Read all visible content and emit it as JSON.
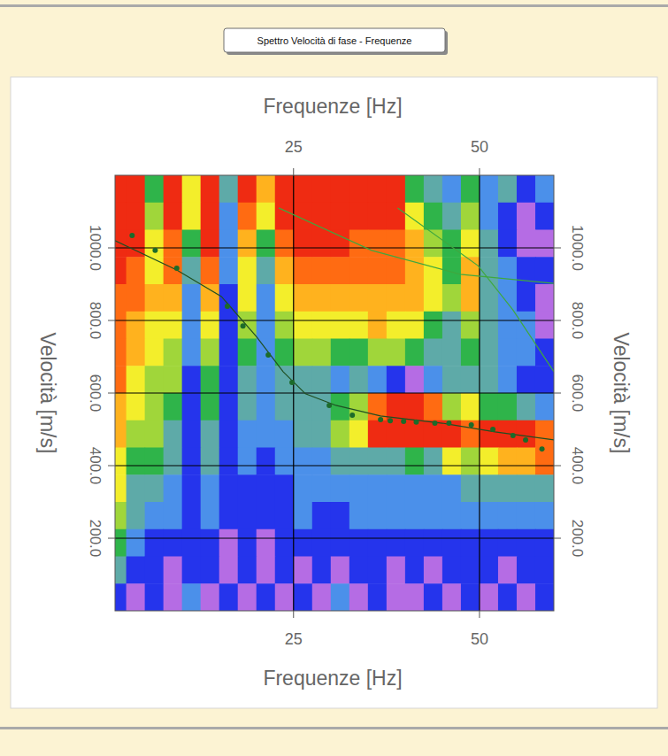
{
  "chart_data": {
    "type": "heatmap",
    "title": "Spettro Velocità di fase - Frequenze",
    "x_label": "Frequenze [Hz]",
    "y_label": "Velocità [m/s]",
    "xlim": [
      1,
      60
    ],
    "ylim": [
      0,
      1200
    ],
    "xticks": [
      25,
      50
    ],
    "yticks": [
      {
        "value": 200,
        "label": "200.0"
      },
      {
        "value": 400,
        "label": "400.0"
      },
      {
        "value": 600,
        "label": "600.0"
      },
      {
        "value": 800,
        "label": "800.0"
      },
      {
        "value": 1000,
        "label": "1000.0"
      }
    ],
    "grid": true,
    "legend": false,
    "color_range": [
      0,
      9
    ],
    "x_bins": [
      0,
      2.5,
      5,
      7.5,
      10,
      12.5,
      15,
      17.5,
      20,
      22.5,
      25,
      27.5,
      30,
      32.5,
      35,
      37.5,
      40,
      42.5,
      45,
      47.5,
      50,
      52.5,
      55,
      57.5,
      60
    ],
    "y_bins": [
      1200,
      1125,
      1050,
      975,
      900,
      825,
      750,
      675,
      600,
      525,
      450,
      375,
      300,
      225,
      150,
      75,
      0
    ],
    "cells": [
      [
        9,
        9,
        4,
        9,
        6,
        9,
        3,
        9,
        7,
        9,
        9,
        9,
        9,
        9,
        9,
        9,
        4,
        3,
        2,
        4,
        2,
        3,
        1,
        2
      ],
      [
        9,
        9,
        5,
        9,
        6,
        9,
        2,
        8,
        6,
        9,
        9,
        9,
        9,
        9,
        9,
        9,
        6,
        4,
        3,
        5,
        2,
        1,
        0,
        1
      ],
      [
        9,
        9,
        6,
        8,
        4,
        9,
        2,
        7,
        4,
        8,
        9,
        9,
        9,
        8,
        8,
        8,
        7,
        5,
        4,
        6,
        3,
        1,
        0,
        0
      ],
      [
        9,
        8,
        6,
        8,
        3,
        8,
        2,
        6,
        3,
        7,
        8,
        8,
        8,
        8,
        8,
        8,
        7,
        6,
        4,
        7,
        3,
        2,
        1,
        1
      ],
      [
        8,
        8,
        7,
        7,
        2,
        7,
        1,
        6,
        2,
        6,
        7,
        7,
        7,
        7,
        7,
        7,
        7,
        6,
        5,
        7,
        3,
        2,
        1,
        0
      ],
      [
        8,
        7,
        6,
        6,
        2,
        6,
        1,
        5,
        2,
        5,
        6,
        6,
        6,
        6,
        7,
        6,
        6,
        4,
        3,
        5,
        3,
        2,
        2,
        0
      ],
      [
        8,
        7,
        6,
        5,
        2,
        5,
        1,
        4,
        2,
        4,
        5,
        5,
        4,
        4,
        5,
        5,
        4,
        3,
        3,
        4,
        3,
        2,
        2,
        1
      ],
      [
        8,
        6,
        5,
        5,
        1,
        4,
        1,
        3,
        2,
        3,
        3,
        3,
        2,
        3,
        2,
        1,
        0,
        2,
        3,
        3,
        3,
        2,
        1,
        1
      ],
      [
        7,
        6,
        5,
        4,
        1,
        4,
        1,
        3,
        2,
        3,
        3,
        3,
        4,
        5,
        8,
        9,
        9,
        8,
        5,
        6,
        4,
        4,
        3,
        2
      ],
      [
        7,
        5,
        5,
        3,
        1,
        3,
        1,
        2,
        2,
        2,
        3,
        3,
        5,
        6,
        9,
        9,
        9,
        9,
        9,
        8,
        9,
        9,
        9,
        8
      ],
      [
        6,
        4,
        4,
        3,
        1,
        3,
        1,
        2,
        1,
        2,
        2,
        2,
        3,
        3,
        3,
        3,
        4,
        3,
        6,
        5,
        6,
        7,
        7,
        8
      ],
      [
        6,
        3,
        3,
        2,
        1,
        2,
        1,
        1,
        1,
        1,
        2,
        2,
        2,
        2,
        2,
        2,
        2,
        2,
        2,
        3,
        3,
        3,
        3,
        3
      ],
      [
        5,
        3,
        2,
        2,
        1,
        2,
        1,
        1,
        1,
        1,
        2,
        1,
        1,
        2,
        2,
        2,
        2,
        2,
        2,
        2,
        2,
        2,
        2,
        2
      ],
      [
        4,
        2,
        1,
        1,
        1,
        1,
        0,
        1,
        0,
        1,
        1,
        1,
        1,
        1,
        1,
        1,
        1,
        1,
        1,
        1,
        1,
        1,
        1,
        1
      ],
      [
        3,
        1,
        1,
        0,
        1,
        1,
        0,
        1,
        0,
        1,
        0,
        1,
        0,
        1,
        1,
        0,
        1,
        0,
        1,
        1,
        1,
        0,
        1,
        1
      ],
      [
        1,
        0,
        1,
        0,
        2,
        0,
        1,
        0,
        1,
        0,
        1,
        0,
        2,
        0,
        1,
        0,
        0,
        1,
        0,
        1,
        0,
        1,
        0,
        1
      ]
    ],
    "series": [
      {
        "type": "line",
        "color": "#3fa83f",
        "line_style": "solid",
        "x": [
          23,
          35.5,
          47.4,
          60
        ],
        "values": [
          1110,
          993,
          927,
          902
        ]
      },
      {
        "type": "line",
        "color": "#3fa83f",
        "line_style": "solid",
        "x": [
          39,
          49.8,
          54.5,
          60
        ],
        "values": [
          1110,
          951,
          829,
          659
        ]
      },
      {
        "type": "line",
        "color": "#1f4f22",
        "line_style": "solid",
        "x": [
          1,
          9.3,
          15.3,
          20,
          23.6,
          26.6,
          30.7,
          36.7,
          45,
          52.1,
          60
        ],
        "values": [
          1020,
          939,
          866,
          756,
          659,
          598,
          566,
          537,
          517,
          493,
          471
        ]
      },
      {
        "type": "scatter",
        "color": "#1c6b2a",
        "marker": "circle",
        "x": [
          3.3,
          6.4,
          9.3,
          16.1,
          18.2,
          21.6,
          24.8,
          29.8,
          32.9,
          36.7,
          38.0,
          39.8,
          41.5,
          44.0,
          45.9,
          48.9,
          51.8,
          54.5,
          56.2,
          58.4
        ],
        "values": [
          1034,
          993,
          944,
          839,
          785,
          705,
          629,
          566,
          539,
          527,
          524,
          522,
          520,
          517,
          517,
          512,
          500,
          483,
          471,
          446
        ]
      }
    ]
  }
}
